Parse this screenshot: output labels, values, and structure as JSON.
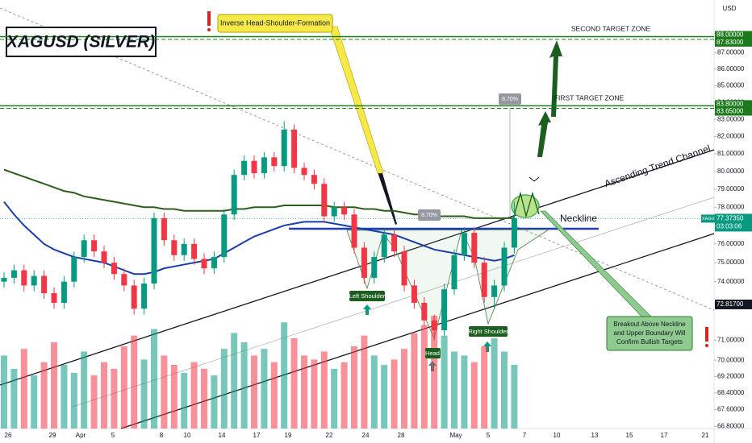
{
  "chart_data": {
    "type": "candlestick",
    "title": "XAGUSD (SILVER)",
    "currency": "USD",
    "symbol": "XAGUSD",
    "countdown": "03:03:06",
    "log_scale": true,
    "up_color": "#089981",
    "down_color": "#f23645",
    "x_labels": [
      "26",
      "29",
      "Apr",
      "5",
      "8",
      "10",
      "14",
      "17",
      "19",
      "22",
      "24",
      "28",
      "May",
      "5",
      "7",
      "10",
      "13",
      "15",
      "17",
      "21"
    ],
    "open": [
      74.0,
      74.2,
      74.6,
      73.8,
      74.3,
      73.4,
      72.9,
      74.0,
      75.3,
      76.2,
      75.6,
      75.0,
      74.4,
      73.8,
      72.6,
      73.9,
      77.4,
      76.2,
      75.4,
      76.0,
      75.2,
      74.7,
      75.3,
      77.6,
      79.8,
      80.6,
      79.9,
      80.8,
      80.3,
      82.4,
      80.2,
      79.8,
      79.3,
      77.5,
      78.0,
      77.6,
      75.8,
      74.2,
      75.3,
      76.5,
      75.6,
      73.8,
      72.9,
      72.0,
      71.5,
      73.6,
      75.4,
      76.6,
      75.0,
      73.2,
      73.8,
      75.8
    ],
    "high": [
      74.5,
      74.9,
      74.9,
      74.6,
      74.6,
      73.7,
      74.3,
      75.6,
      76.5,
      76.5,
      75.9,
      75.3,
      74.7,
      74.1,
      74.2,
      77.7,
      77.7,
      76.5,
      76.3,
      76.3,
      75.5,
      75.6,
      77.9,
      80.1,
      80.9,
      80.9,
      81.1,
      81.1,
      82.9,
      82.7,
      80.5,
      80.1,
      79.6,
      78.3,
      78.3,
      77.9,
      76.1,
      75.6,
      76.8,
      76.8,
      75.9,
      74.1,
      73.2,
      72.3,
      73.9,
      75.7,
      76.9,
      76.9,
      75.3,
      74.1,
      76.1,
      78.3
    ],
    "low": [
      73.7,
      73.9,
      73.5,
      73.5,
      73.1,
      72.6,
      72.6,
      73.7,
      75.0,
      75.3,
      74.7,
      74.1,
      73.5,
      72.3,
      72.3,
      73.6,
      75.9,
      75.1,
      75.1,
      74.9,
      74.4,
      74.4,
      75.0,
      77.3,
      79.5,
      79.6,
      79.6,
      80.0,
      80.0,
      79.9,
      79.5,
      79.0,
      77.2,
      77.2,
      77.3,
      75.5,
      73.9,
      73.9,
      75.0,
      75.3,
      73.5,
      72.6,
      71.7,
      71.0,
      71.2,
      73.3,
      75.1,
      74.7,
      72.9,
      72.6,
      73.5,
      75.5
    ],
    "close": [
      74.2,
      74.6,
      73.8,
      74.3,
      73.4,
      72.9,
      74.0,
      75.3,
      76.2,
      75.6,
      75.0,
      74.4,
      73.8,
      72.6,
      73.9,
      77.4,
      76.2,
      75.4,
      76.0,
      75.2,
      74.7,
      75.3,
      77.6,
      79.8,
      80.6,
      79.9,
      80.8,
      80.3,
      82.4,
      80.2,
      79.8,
      79.3,
      77.5,
      78.0,
      77.6,
      75.8,
      74.2,
      75.3,
      76.5,
      75.6,
      73.8,
      72.9,
      72.0,
      71.5,
      73.6,
      75.4,
      76.6,
      75.0,
      73.2,
      73.8,
      75.8,
      77.4
    ],
    "volume": [
      55,
      45,
      60,
      40,
      50,
      65,
      48,
      42,
      58,
      40,
      50,
      45,
      62,
      70,
      52,
      75,
      55,
      48,
      42,
      50,
      45,
      40,
      60,
      72,
      65,
      55,
      60,
      50,
      80,
      68,
      55,
      52,
      58,
      45,
      50,
      62,
      70,
      55,
      48,
      52,
      60,
      72,
      78,
      85,
      70,
      58,
      55,
      50,
      62,
      68,
      58,
      48
    ],
    "moving_averages": [
      {
        "color": "#2e5e1e",
        "values": [
          80.1,
          79.9,
          79.7,
          79.5,
          79.3,
          79.1,
          78.9,
          78.8,
          78.6,
          78.5,
          78.4,
          78.3,
          78.2,
          78.1,
          78.0,
          78.0,
          77.9,
          77.9,
          77.8,
          77.8,
          77.8,
          77.8,
          77.8,
          77.9,
          77.9,
          78.0,
          78.0,
          78.0,
          78.1,
          78.1,
          78.1,
          78.1,
          78.1,
          78.0,
          78.0,
          78.0,
          77.9,
          77.9,
          77.8,
          77.8,
          77.7,
          77.6,
          77.6,
          77.5,
          77.5,
          77.5,
          77.5,
          77.4,
          77.4,
          77.4,
          77.4,
          77.4
        ]
      },
      {
        "color": "#1a3ea8",
        "values": [
          78.3,
          77.6,
          77.0,
          76.5,
          76.0,
          75.7,
          75.5,
          75.3,
          75.2,
          75.1,
          75.0,
          74.8,
          74.6,
          74.4,
          74.4,
          74.5,
          74.7,
          74.8,
          74.9,
          75.0,
          75.1,
          75.2,
          75.5,
          75.8,
          76.1,
          76.4,
          76.6,
          76.8,
          77.0,
          77.1,
          77.2,
          77.2,
          77.2,
          77.1,
          77.0,
          76.9,
          76.8,
          76.7,
          76.6,
          76.5,
          76.3,
          76.1,
          75.9,
          75.7,
          75.6,
          75.5,
          75.4,
          75.3,
          75.2,
          75.1,
          75.2,
          75.4
        ]
      }
    ],
    "ylim": [
      66.7,
      89.9
    ],
    "yticks": [
      {
        "value": 87,
        "label": "87.00000"
      },
      {
        "value": 86,
        "label": "86.00000"
      },
      {
        "value": 85,
        "label": "85.00000"
      },
      {
        "value": 84,
        "label": "84.00000"
      },
      {
        "value": 83,
        "label": "83.00000"
      },
      {
        "value": 82,
        "label": "82.00000"
      },
      {
        "value": 81,
        "label": "81.00000"
      },
      {
        "value": 80,
        "label": "80.00000"
      },
      {
        "value": 79,
        "label": "79.00000"
      },
      {
        "value": 78,
        "label": "78.00000"
      },
      {
        "value": 76,
        "label": "76.00000"
      },
      {
        "value": 75,
        "label": "75.00000"
      },
      {
        "value": 74,
        "label": "74.00000"
      },
      {
        "value": 71,
        "label": "71.00000"
      },
      {
        "value": 70,
        "label": "70.00000"
      },
      {
        "value": 69.2,
        "label": "69.20000"
      },
      {
        "value": 68.4,
        "label": "68.40000"
      },
      {
        "value": 67.6,
        "label": "67.60000"
      },
      {
        "value": 66.8,
        "label": "66.80000"
      }
    ],
    "target_zones": [
      [
        {
          "value": 88,
          "label": "88.00000"
        },
        {
          "value": 87.83,
          "label": "87.83000"
        }
      ],
      [
        {
          "value": 83.8,
          "label": "83.80000"
        },
        {
          "value": 83.65,
          "label": "83.65000"
        }
      ]
    ],
    "current_price": {
      "value": 77.3735,
      "label": "77.37350"
    },
    "level": {
      "value": 72.817,
      "label": "72.81700"
    },
    "annotations": {
      "pattern": "Inverse Head-Shoulder-Formation",
      "second_target": "SECOND TARGET ZONE",
      "first_target": "FIRST TARGET ZONE",
      "channel": "Ascending Trend Channel",
      "neckline": "Neckline",
      "left_shoulder": "Left Shoulder",
      "head": "Head",
      "right_shoulder": "Right Shoulder",
      "breakout": [
        "Breakout Above Neckline",
        "and Upper Boundary Will",
        "Confirm Bullish Targets"
      ],
      "measures": [
        "8.70%",
        "8.70%"
      ]
    }
  }
}
